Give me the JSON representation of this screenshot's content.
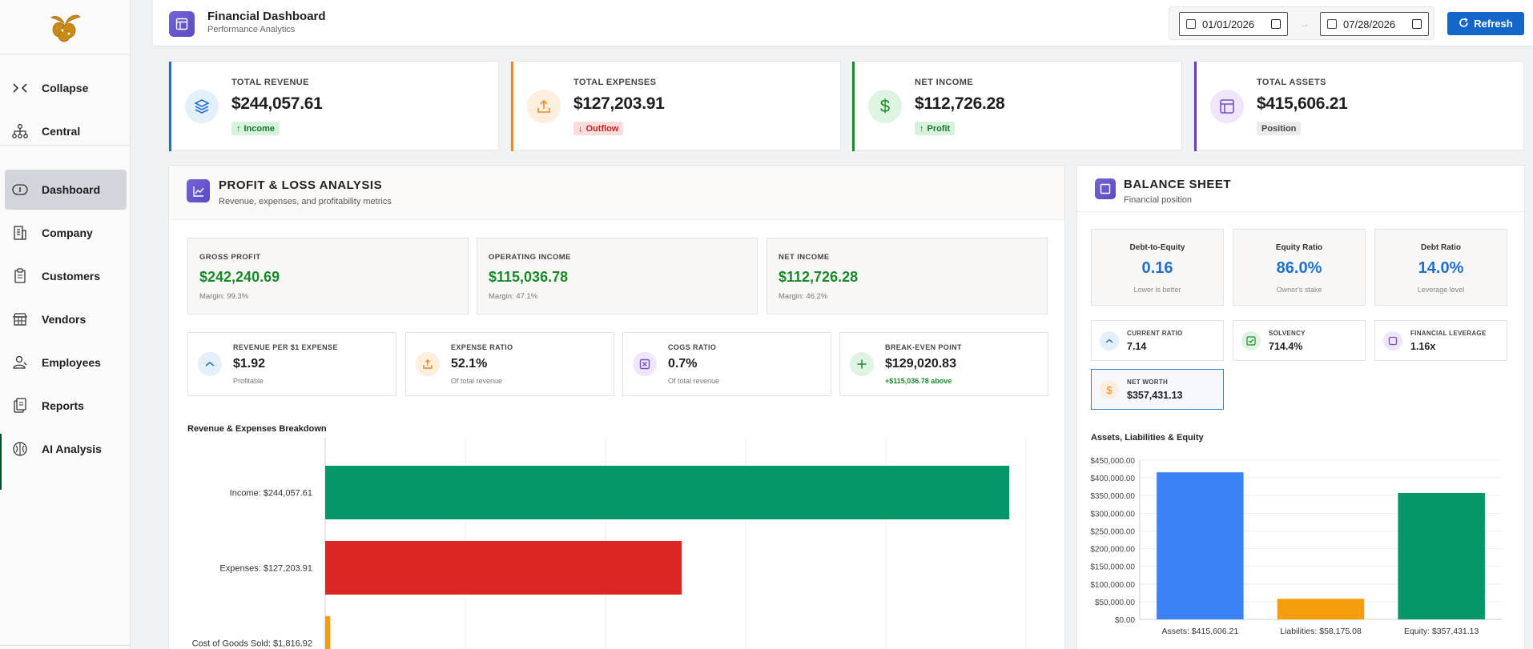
{
  "colors": {
    "accent": "#1566c9",
    "purple": "#6a5acd",
    "green": "#198a2a",
    "red": "#dc2626",
    "amber": "#f59e0b",
    "teal": "#059669",
    "blue": "#3b82f6"
  },
  "sidebar": {
    "logo_icon": "hops-logo-icon",
    "items": [
      {
        "label": "Collapse",
        "icon": "collapse-icon"
      },
      {
        "label": "Central",
        "icon": "org-chart-icon"
      },
      {
        "label": "Dashboard",
        "icon": "info-icon",
        "active": true
      },
      {
        "label": "Company",
        "icon": "building-icon"
      },
      {
        "label": "Customers",
        "icon": "clipboard-icon"
      },
      {
        "label": "Vendors",
        "icon": "store-icon"
      },
      {
        "label": "Employees",
        "icon": "user-icon"
      },
      {
        "label": "Reports",
        "icon": "document-icon"
      },
      {
        "label": "AI Analysis",
        "icon": "brain-icon"
      }
    ]
  },
  "header": {
    "title": "Financial Dashboard",
    "subtitle": "Performance Analytics",
    "date_from": "01/01/2026",
    "date_to": "07/28/2026",
    "date_separator": "→",
    "refresh_label": "Refresh"
  },
  "kpis": [
    {
      "label": "TOTAL REVENUE",
      "value": "$244,057.61",
      "badge": "Income",
      "badge_arrow": "↑",
      "color": "#1d6fd1"
    },
    {
      "label": "TOTAL EXPENSES",
      "value": "$127,203.91",
      "badge": "Outflow",
      "badge_arrow": "↓",
      "color": "#f28a1a"
    },
    {
      "label": "NET INCOME",
      "value": "$112,726.28",
      "badge": "Profit",
      "badge_arrow": "↑",
      "color": "#198a2a"
    },
    {
      "label": "TOTAL ASSETS",
      "value": "$415,606.21",
      "badge": "Position",
      "badge_arrow": "",
      "color": "#6a3fb5"
    }
  ],
  "pl": {
    "title": "PROFIT & LOSS ANALYSIS",
    "subtitle": "Revenue, expenses, and profitability metrics",
    "metrics": [
      {
        "label": "GROSS PROFIT",
        "value": "$242,240.69",
        "sub": "Margin: 99.3%"
      },
      {
        "label": "OPERATING INCOME",
        "value": "$115,036.78",
        "sub": "Margin: 47.1%"
      },
      {
        "label": "NET INCOME",
        "value": "$112,726.28",
        "sub": "Margin: 46.2%"
      }
    ],
    "stats": [
      {
        "label": "REVENUE PER $1 EXPENSE",
        "value": "$1.92",
        "sub": "Profitable",
        "icon": "chevron-up-icon"
      },
      {
        "label": "EXPENSE RATIO",
        "value": "52.1%",
        "sub": "Of total revenue",
        "icon": "upload-icon"
      },
      {
        "label": "COGS RATIO",
        "value": "0.7%",
        "sub": "Of total revenue",
        "icon": "x-box-icon"
      },
      {
        "label": "BREAK-EVEN POINT",
        "value": "$129,020.83",
        "sub": "+$115,036.78 above",
        "icon": "plus-icon"
      }
    ],
    "chart_title": "Revenue & Expenses Breakdown"
  },
  "balance": {
    "title": "BALANCE SHEET",
    "subtitle": "Financial position",
    "ratios": [
      {
        "label": "Debt-to-Equity",
        "value": "0.16",
        "sub": "Lower is better"
      },
      {
        "label": "Equity Ratio",
        "value": "86.0%",
        "sub": "Owner's stake"
      },
      {
        "label": "Debt Ratio",
        "value": "14.0%",
        "sub": "Leverage level"
      }
    ],
    "smalls": [
      {
        "label": "CURRENT RATIO",
        "value": "7.14",
        "icon": "chevron-up-icon"
      },
      {
        "label": "SOLVENCY",
        "value": "714.4%",
        "icon": "check-icon"
      },
      {
        "label": "FINANCIAL LEVERAGE",
        "value": "1.16x",
        "icon": "square-icon"
      },
      {
        "label": "NET WORTH",
        "value": "$357,431.13",
        "icon": "dollar-icon"
      }
    ],
    "chart_title": "Assets, Liabilities & Equity"
  },
  "chart_data": [
    {
      "type": "bar",
      "orientation": "horizontal",
      "title": "Revenue & Expenses Breakdown",
      "categories": [
        "Income: $244,057.61",
        "Expenses: $127,203.91",
        "Cost of Goods Sold: $1,816.92"
      ],
      "values": [
        244057.61,
        127203.91,
        1816.92
      ],
      "colors": [
        "#059669",
        "#dc2626",
        "#f59e0b"
      ],
      "xlim": [
        0,
        250000
      ],
      "grid": true
    },
    {
      "type": "bar",
      "title": "Assets, Liabilities & Equity",
      "categories": [
        "Assets: $415,606.21",
        "Liabilities: $58,175.08",
        "Equity: $357,431.13"
      ],
      "values": [
        415606.21,
        58175.08,
        357431.13
      ],
      "colors": [
        "#3b82f6",
        "#f59e0b",
        "#059669"
      ],
      "ylim": [
        0,
        450000
      ],
      "y_ticks": [
        "$0.00",
        "$50,000.00",
        "$100,000.00",
        "$150,000.00",
        "$200,000.00",
        "$250,000.00",
        "$300,000.00",
        "$350,000.00",
        "$400,000.00",
        "$450,000.00"
      ],
      "grid": true
    }
  ]
}
